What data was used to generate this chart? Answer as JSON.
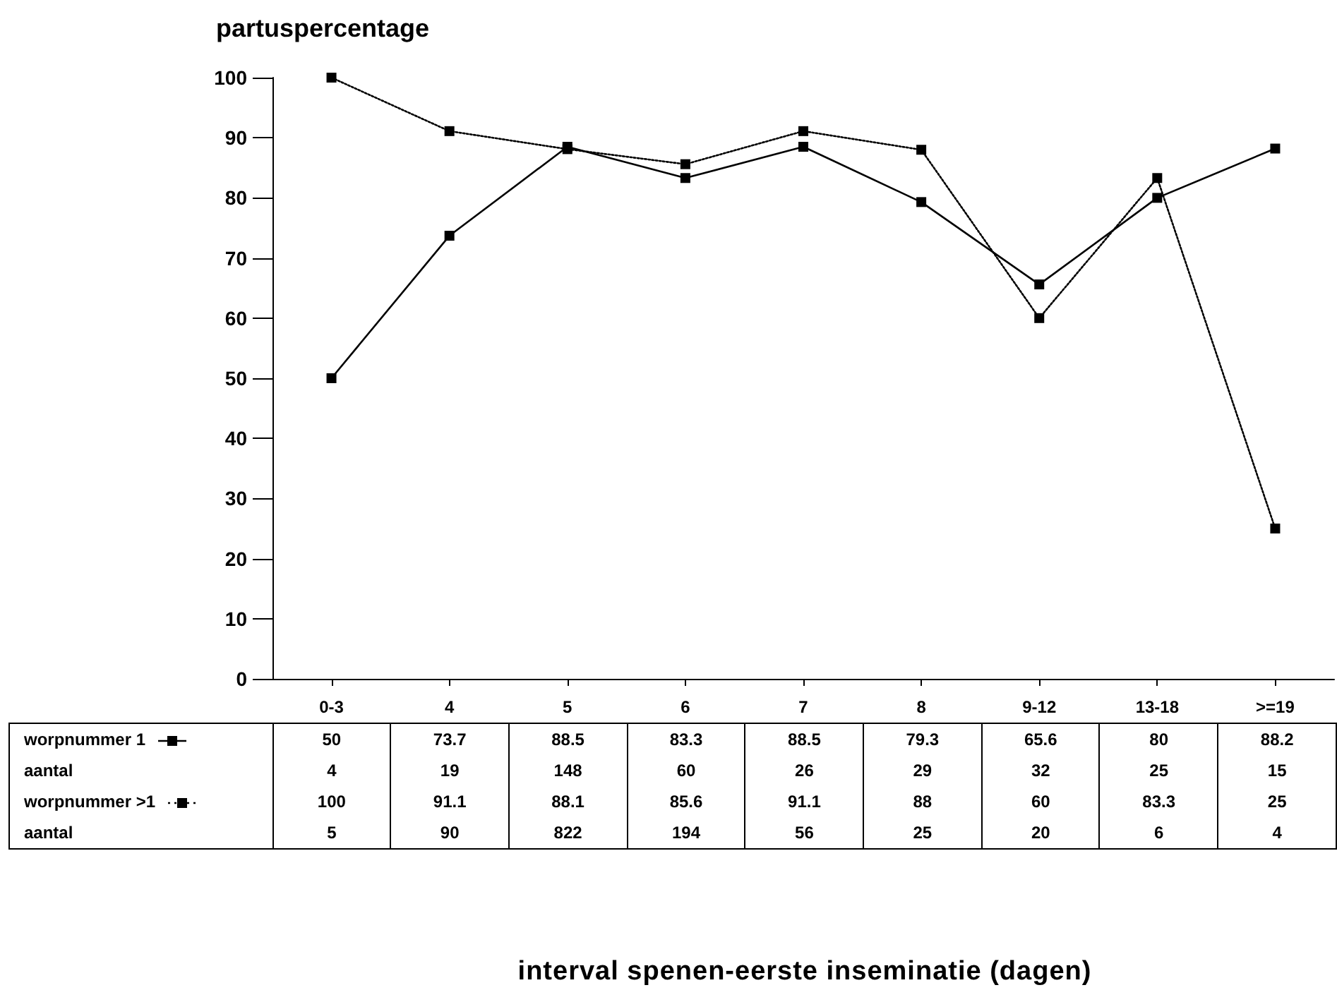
{
  "chart_data": {
    "type": "line",
    "title": "partuspercentage",
    "categories": [
      "0-3",
      "4",
      "5",
      "6",
      "7",
      "8",
      "9-12",
      "13-18",
      ">=19"
    ],
    "series": [
      {
        "name": "worpnummer 1",
        "color": "#000000",
        "line_style": "solid",
        "values": [
          50,
          73.7,
          88.5,
          83.3,
          88.5,
          79.3,
          65.6,
          80,
          88.2
        ]
      },
      {
        "name": "worpnummer >1",
        "color": "#000000",
        "line_style": "dotted",
        "values": [
          100,
          91.1,
          88.1,
          85.6,
          91.1,
          88,
          60,
          83.3,
          25
        ]
      }
    ],
    "annotations": [
      "aantal",
      "4",
      "19",
      "148",
      "60",
      "26",
      "29",
      "32",
      "25",
      "15",
      "aantal",
      "5",
      "90",
      "822",
      "194",
      "56",
      "25",
      "20",
      "6",
      "4",
      "interval spenen-eerste inseminatie (dagen)"
    ],
    "ylim": [
      0,
      100
    ],
    "yticks": [
      0,
      10,
      20,
      30,
      40,
      50,
      60,
      70,
      80,
      90,
      100
    ],
    "marker": "square",
    "grid": false,
    "legend": "bottom left",
    "data_labels": true
  }
}
